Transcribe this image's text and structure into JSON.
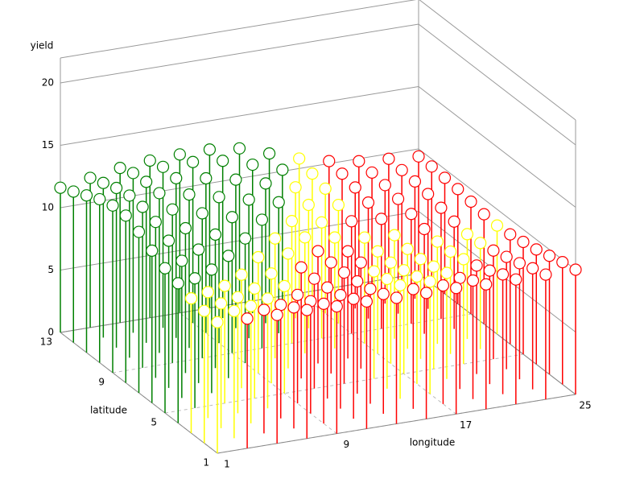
{
  "chart_data": {
    "type": "stem3d",
    "x_label": "longitude",
    "y_label": "latitude",
    "z_label": "yield",
    "x": [
      1,
      3,
      5,
      7,
      9,
      11,
      13,
      15,
      17,
      19,
      21,
      23,
      25
    ],
    "y": [
      1,
      2,
      3,
      4,
      5,
      6,
      7,
      8,
      9,
      10,
      11,
      12,
      13
    ],
    "xlim": [
      1,
      25
    ],
    "ylim": [
      1,
      13
    ],
    "zlim": [
      0,
      22
    ],
    "xticks": [
      1,
      9,
      17,
      25
    ],
    "yticks": [
      1,
      5,
      9,
      13
    ],
    "zticks": [
      0,
      5,
      10,
      15,
      20
    ],
    "colors": [
      "#008000",
      "#ffff00",
      "#ff0000"
    ],
    "z": [
      [
        10.5,
        10.4,
        10.3,
        10.3,
        10.2,
        10.2,
        10.1,
        10.1,
        10.1,
        10.0,
        10.0,
        10.0,
        10.0
      ],
      [
        10.6,
        10.2,
        9.9,
        9.7,
        9.6,
        9.6,
        9.6,
        9.6,
        9.5,
        9.5,
        9.6,
        9.7,
        9.8
      ],
      [
        10.8,
        10.0,
        9.4,
        9.1,
        9.0,
        9.1,
        9.2,
        9.1,
        9.0,
        8.9,
        9.1,
        9.3,
        9.5
      ],
      [
        11.2,
        10.1,
        9.3,
        8.8,
        8.7,
        8.9,
        9.0,
        8.8,
        8.6,
        8.5,
        8.7,
        9.0,
        9.2
      ],
      [
        11.6,
        10.4,
        9.4,
        8.8,
        8.6,
        8.8,
        8.9,
        8.6,
        8.3,
        8.2,
        8.4,
        8.7,
        9.0
      ],
      [
        12.2,
        11.0,
        9.9,
        9.1,
        8.8,
        8.9,
        8.9,
        8.5,
        8.1,
        8.0,
        8.2,
        8.5,
        8.8
      ],
      [
        12.9,
        11.8,
        10.7,
        9.8,
        9.3,
        9.2,
        9.0,
        8.6,
        8.2,
        8.0,
        8.2,
        8.4,
        8.7
      ],
      [
        13.4,
        12.5,
        11.6,
        10.7,
        10.0,
        9.6,
        9.3,
        8.9,
        8.5,
        8.3,
        8.4,
        8.6,
        8.8
      ],
      [
        13.4,
        12.9,
        12.3,
        11.6,
        10.9,
        10.3,
        9.8,
        9.3,
        9.0,
        8.8,
        8.8,
        8.9,
        9.0
      ],
      [
        13.1,
        13.0,
        12.8,
        12.3,
        11.7,
        11.1,
        10.5,
        9.9,
        9.5,
        9.3,
        9.2,
        9.2,
        9.2
      ],
      [
        12.6,
        12.8,
        12.9,
        12.8,
        12.4,
        11.9,
        11.2,
        10.5,
        10.0,
        9.7,
        9.5,
        9.4,
        9.3
      ],
      [
        12.1,
        12.4,
        12.8,
        12.9,
        12.9,
        12.6,
        11.9,
        11.1,
        10.4,
        10.0,
        9.7,
        9.5,
        9.4
      ],
      [
        11.6,
        12.0,
        12.4,
        12.6,
        12.7,
        12.7,
        12.4,
        11.6,
        10.8,
        10.2,
        9.8,
        9.6,
        9.4
      ]
    ],
    "group": [
      [
        1,
        2,
        2,
        2,
        2,
        2,
        2,
        2,
        2,
        2,
        2,
        2,
        2
      ],
      [
        1,
        1,
        2,
        2,
        2,
        2,
        2,
        2,
        2,
        2,
        2,
        2,
        2
      ],
      [
        1,
        1,
        1,
        2,
        2,
        2,
        2,
        1,
        1,
        2,
        2,
        2,
        2
      ],
      [
        0,
        1,
        1,
        1,
        2,
        2,
        2,
        1,
        1,
        1,
        2,
        2,
        2
      ],
      [
        0,
        0,
        1,
        1,
        1,
        2,
        2,
        1,
        1,
        1,
        1,
        2,
        2
      ],
      [
        0,
        0,
        0,
        1,
        1,
        2,
        2,
        2,
        1,
        1,
        1,
        1,
        2
      ],
      [
        0,
        0,
        0,
        0,
        1,
        1,
        2,
        2,
        1,
        1,
        1,
        1,
        1
      ],
      [
        0,
        0,
        0,
        0,
        0,
        1,
        1,
        1,
        1,
        1,
        2,
        2,
        2
      ],
      [
        0,
        0,
        0,
        0,
        0,
        0,
        1,
        1,
        2,
        2,
        2,
        2,
        2
      ],
      [
        0,
        0,
        0,
        0,
        0,
        0,
        0,
        1,
        1,
        2,
        2,
        2,
        2
      ],
      [
        0,
        0,
        0,
        0,
        0,
        0,
        0,
        1,
        1,
        2,
        2,
        2,
        2
      ],
      [
        0,
        0,
        0,
        0,
        0,
        0,
        0,
        0,
        1,
        2,
        2,
        2,
        2
      ],
      [
        0,
        0,
        0,
        0,
        0,
        0,
        0,
        0,
        1,
        2,
        2,
        2,
        2
      ]
    ]
  }
}
